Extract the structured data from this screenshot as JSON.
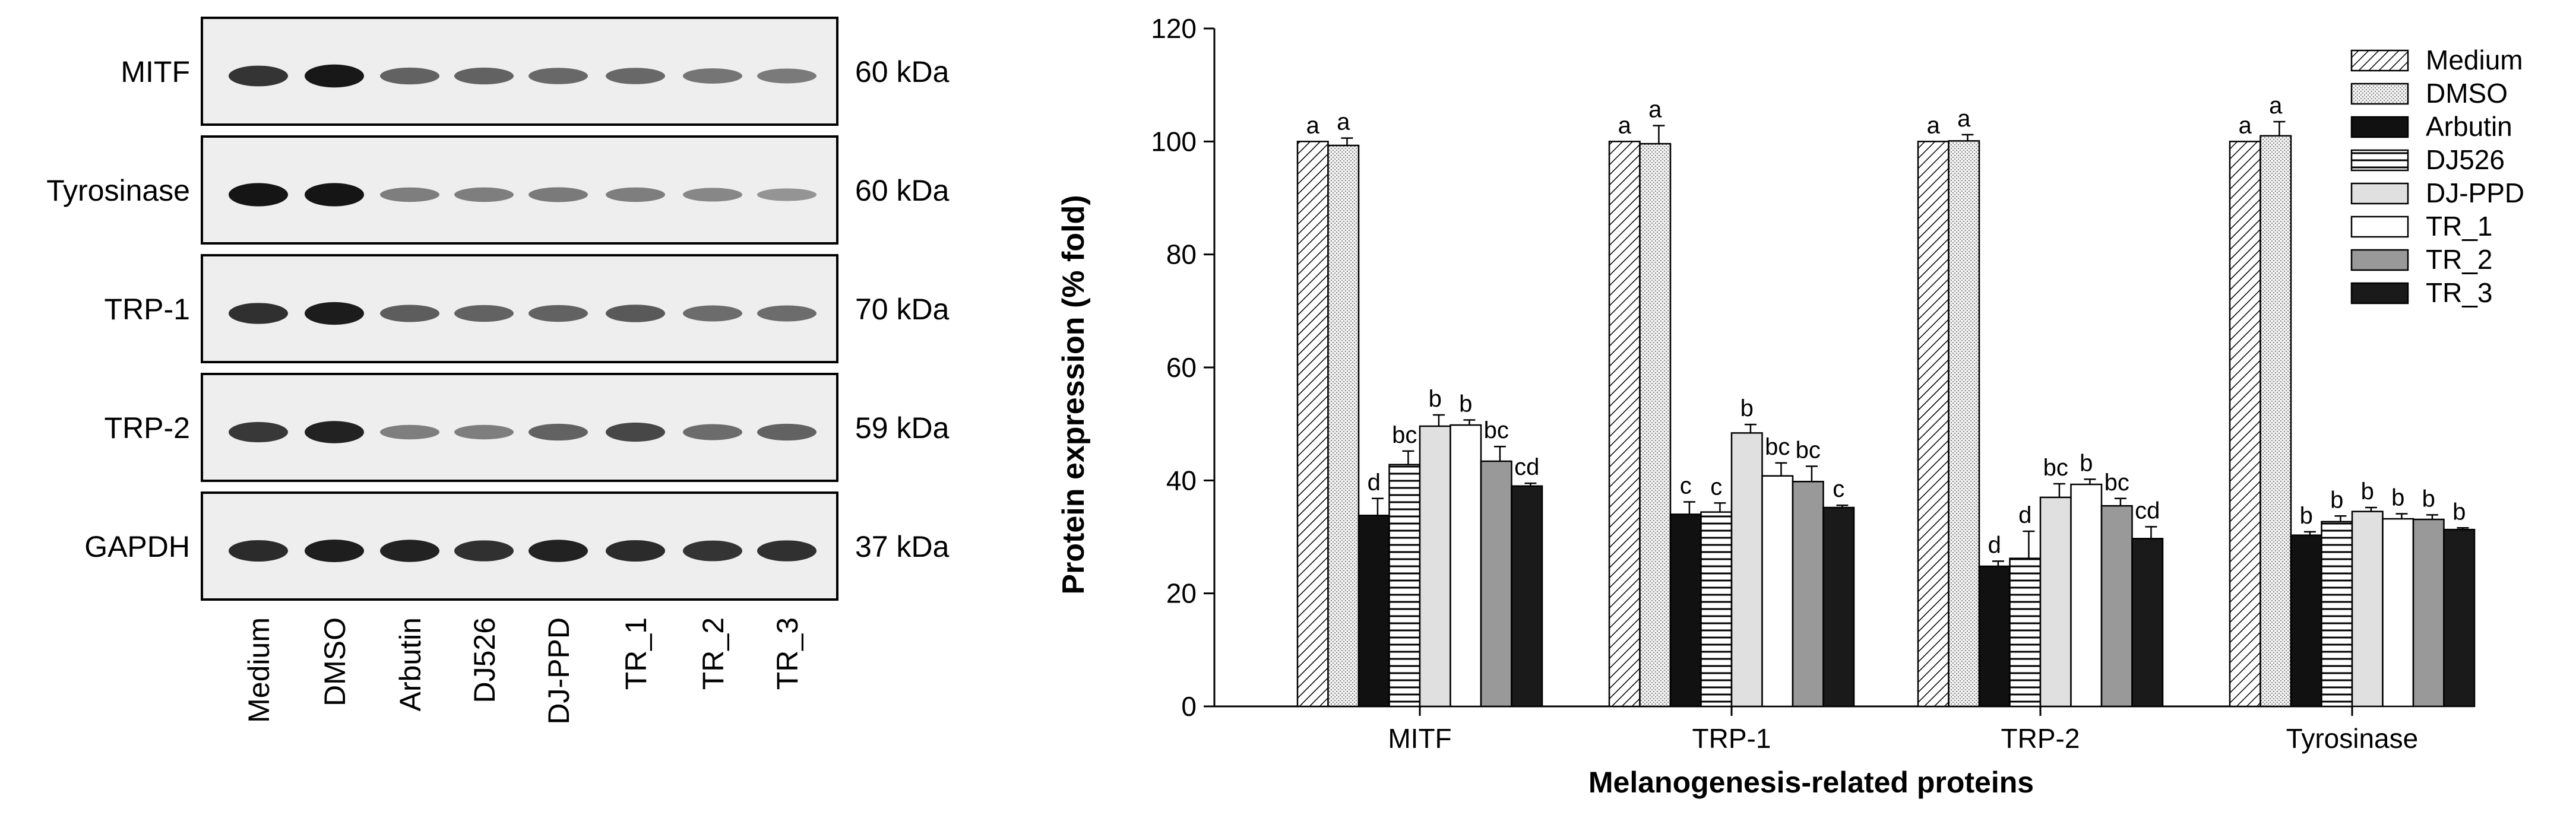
{
  "blot": {
    "rows": [
      {
        "protein": "MITF",
        "size": "60 kDa",
        "intensity": [
          0.8,
          0.95,
          0.55,
          0.55,
          0.52,
          0.52,
          0.45,
          0.42
        ]
      },
      {
        "protein": "Tyrosinase",
        "size": "60 kDa",
        "intensity": [
          0.97,
          0.97,
          0.4,
          0.4,
          0.42,
          0.4,
          0.35,
          0.28
        ]
      },
      {
        "protein": "TRP-1",
        "size": "70 kDa",
        "intensity": [
          0.82,
          0.93,
          0.58,
          0.55,
          0.55,
          0.6,
          0.5,
          0.5
        ]
      },
      {
        "protein": "TRP-2",
        "size": "59 kDa",
        "intensity": [
          0.78,
          0.9,
          0.4,
          0.4,
          0.55,
          0.7,
          0.5,
          0.55
        ]
      },
      {
        "protein": "GAPDH",
        "size": "37 kDa",
        "intensity": [
          0.85,
          0.92,
          0.9,
          0.82,
          0.9,
          0.85,
          0.8,
          0.82
        ]
      }
    ],
    "lanes": [
      "Medium",
      "DMSO",
      "Arbutin",
      "DJ526",
      "DJ-PPD",
      "TR_1",
      "TR_2",
      "TR_3"
    ]
  },
  "chart_data": {
    "type": "bar",
    "title": "",
    "xlabel": "Melanogenesis-related proteins",
    "ylabel": "Protein expression (% fold)",
    "ylim": [
      0,
      120
    ],
    "yticks": [
      "0",
      "20",
      "40",
      "60",
      "80",
      "100",
      "120"
    ],
    "categories": [
      "MITF",
      "TRP-1",
      "TRP-2",
      "Tyrosinase"
    ],
    "legend_position": "top-right",
    "series": [
      {
        "name": "Medium",
        "pattern": "diag",
        "values": [
          100,
          100,
          100,
          100
        ],
        "errors": [
          0,
          0,
          0,
          0
        ],
        "letters": [
          "a",
          "a",
          "a",
          "a"
        ]
      },
      {
        "name": "DMSO",
        "pattern": "dots",
        "values": [
          99.3,
          99.6,
          100.1,
          101
        ],
        "errors": [
          1.3,
          3.2,
          1.1,
          2.5
        ],
        "letters": [
          "a",
          "a",
          "a",
          "a"
        ]
      },
      {
        "name": "Arbutin",
        "pattern": "black",
        "values": [
          33.8,
          34,
          24.8,
          30.3
        ],
        "errors": [
          3.0,
          2.2,
          0.9,
          0.6
        ],
        "letters": [
          "d",
          "c",
          "d",
          "b"
        ]
      },
      {
        "name": "DJ526",
        "pattern": "hlines",
        "values": [
          42.8,
          34.4,
          26.2,
          32.7
        ],
        "errors": [
          2.4,
          1.6,
          4.8,
          1.0
        ],
        "letters": [
          "bc",
          "c",
          "d",
          "b"
        ]
      },
      {
        "name": "DJ-PPD",
        "pattern": "lightgray",
        "values": [
          49.6,
          48.4,
          37,
          34.5
        ],
        "errors": [
          2.0,
          1.5,
          2.4,
          0.7
        ],
        "letters": [
          "b",
          "b",
          "bc",
          "b"
        ]
      },
      {
        "name": "TR_1",
        "pattern": "white",
        "values": [
          49.8,
          40.8,
          39.3,
          33.2
        ],
        "errors": [
          0.9,
          2.3,
          0.9,
          0.9
        ],
        "letters": [
          "b",
          "bc",
          "b",
          "b"
        ]
      },
      {
        "name": "TR_2",
        "pattern": "gray",
        "values": [
          43.4,
          39.8,
          35.5,
          33.1
        ],
        "errors": [
          2.6,
          2.7,
          1.3,
          0.8
        ],
        "letters": [
          "bc",
          "bc",
          "bc",
          "b"
        ]
      },
      {
        "name": "TR_3",
        "pattern": "darkblack",
        "values": [
          39,
          35.2,
          29.7,
          31.3
        ],
        "errors": [
          0.5,
          0.4,
          2.1,
          0.3
        ],
        "letters": [
          "cd",
          "c",
          "cd",
          "b"
        ]
      }
    ]
  }
}
